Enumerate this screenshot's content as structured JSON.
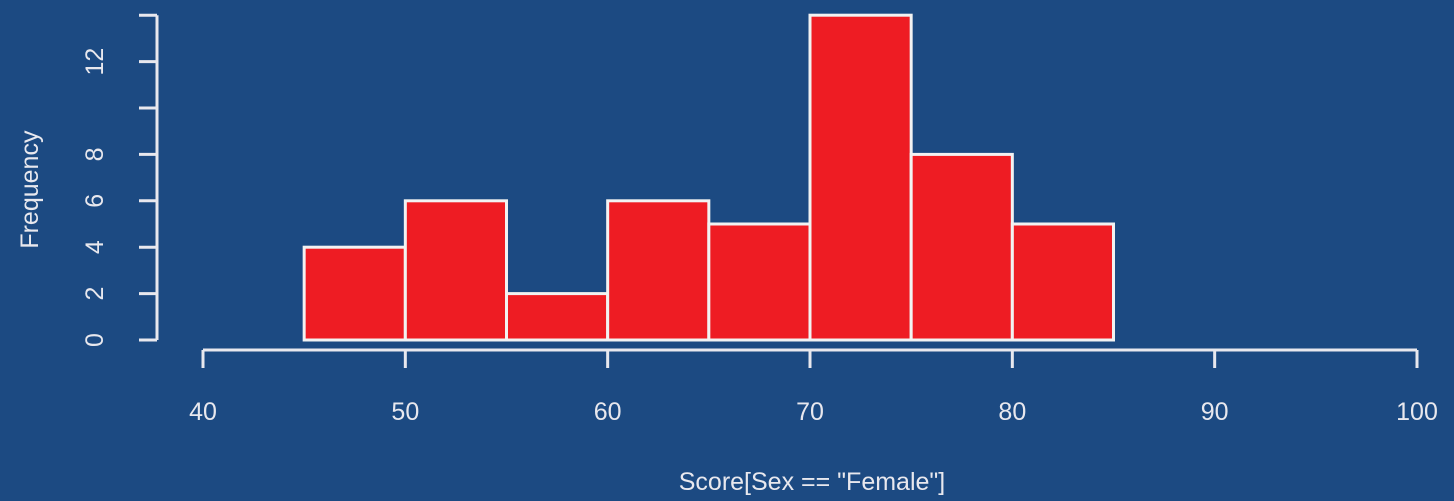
{
  "chart_data": {
    "type": "bar",
    "histogram": true,
    "bins": [
      {
        "x0": 45,
        "x1": 50,
        "count": 4
      },
      {
        "x0": 50,
        "x1": 55,
        "count": 6
      },
      {
        "x0": 55,
        "x1": 60,
        "count": 2
      },
      {
        "x0": 60,
        "x1": 65,
        "count": 6
      },
      {
        "x0": 65,
        "x1": 70,
        "count": 5
      },
      {
        "x0": 70,
        "x1": 75,
        "count": 14
      },
      {
        "x0": 75,
        "x1": 80,
        "count": 8
      },
      {
        "x0": 80,
        "x1": 85,
        "count": 5
      }
    ],
    "xlabel": "Score[Sex == \"Female\"]",
    "ylabel": "Frequency",
    "xlim": [
      40,
      100
    ],
    "ylim": [
      0,
      14
    ],
    "x_ticks": [
      40,
      50,
      60,
      70,
      80,
      90,
      100
    ],
    "y_ticks": [
      0,
      2,
      4,
      6,
      8,
      12
    ],
    "grid": false,
    "legend": "none"
  },
  "colors": {
    "background": "#1c4a82",
    "bar_fill": "#ee1c23",
    "bar_stroke": "#f2f2f2",
    "axis": "#e8e8ee",
    "text": "#e8e8ee"
  }
}
